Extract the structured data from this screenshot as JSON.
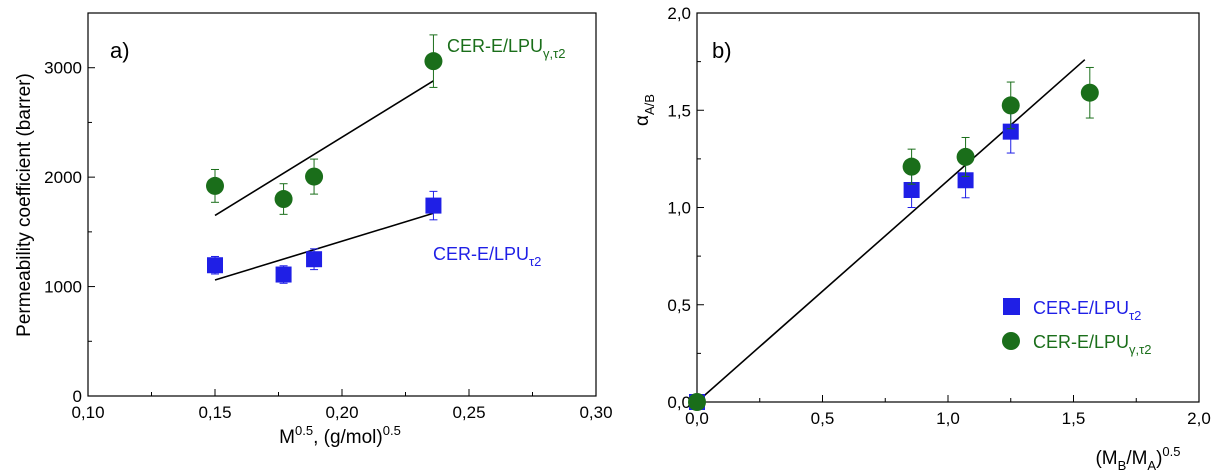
{
  "colors": {
    "blue_series": "#1f1fe6",
    "green_series": "#1a6e1a",
    "fit_line": "#000000"
  },
  "chart_data": [
    {
      "type": "scatter",
      "panel_label": "a)",
      "xlabel": {
        "base": "M",
        "sup": "0.5",
        "mid": ", (g/mol)",
        "sup2": "0.5"
      },
      "ylabel": "Permeability coefficient (barrer)",
      "xlim": [
        0.1,
        0.3
      ],
      "ylim": [
        0,
        3500
      ],
      "xticks": [
        "0,10",
        "0,15",
        "0,20",
        "0,25",
        "0,30"
      ],
      "yticks": [
        "0",
        "1000",
        "2000",
        "3000"
      ],
      "series": [
        {
          "name": {
            "base": "CER-E/LPU",
            "sub": "γ,τ2"
          },
          "marker": "circle",
          "x": [
            0.15,
            0.177,
            0.189,
            0.236
          ],
          "y": [
            1920,
            1800,
            2005,
            3060
          ],
          "err": [
            150,
            140,
            160,
            240
          ]
        },
        {
          "name": {
            "base": "CER-E/LPU",
            "sub": "τ2"
          },
          "marker": "square",
          "x": [
            0.15,
            0.177,
            0.189,
            0.236
          ],
          "y": [
            1195,
            1110,
            1250,
            1740
          ],
          "err": [
            80,
            80,
            95,
            130
          ]
        }
      ],
      "fits": [
        {
          "x": [
            0.15,
            0.236
          ],
          "y": [
            1650,
            2880
          ]
        },
        {
          "x": [
            0.15,
            0.236
          ],
          "y": [
            1060,
            1670
          ]
        }
      ]
    },
    {
      "type": "scatter",
      "panel_label": "b)",
      "xlabel": {
        "base": "(M",
        "sub1": "B",
        "mid": "/M",
        "sub2": "A",
        "end": ")",
        "sup": "0.5"
      },
      "ylabel": {
        "base": "α",
        "sub": "A/B"
      },
      "xlim": [
        0.0,
        2.0
      ],
      "ylim": [
        0.0,
        2.0
      ],
      "xticks": [
        "0,0",
        "0,5",
        "1,0",
        "1,5",
        "2,0"
      ],
      "yticks": [
        "0,0",
        "0,5",
        "1,0",
        "1,5",
        "2,0"
      ],
      "legend": [
        {
          "base": "CER-E/LPU",
          "sub": "τ2",
          "marker": "square"
        },
        {
          "base": "CER-E/LPU",
          "sub": "γ,τ2",
          "marker": "circle"
        }
      ],
      "series": [
        {
          "name": {
            "base": "CER-E/LPU",
            "sub": "τ2"
          },
          "marker": "square",
          "x": [
            0.0,
            0.855,
            1.07,
            1.25
          ],
          "y": [
            0.0,
            1.09,
            1.14,
            1.39
          ],
          "err": [
            0.0,
            0.09,
            0.09,
            0.11
          ]
        },
        {
          "name": {
            "base": "CER-E/LPU",
            "sub": "γ,τ2"
          },
          "marker": "circle",
          "x": [
            0.0,
            0.855,
            1.07,
            1.25,
            1.565
          ],
          "y": [
            0.0,
            1.21,
            1.26,
            1.525,
            1.59
          ],
          "err": [
            0.0,
            0.09,
            0.1,
            0.12,
            0.13
          ]
        }
      ],
      "fits": [
        {
          "x": [
            0.0,
            1.545
          ],
          "y": [
            0.0,
            1.76
          ]
        }
      ]
    }
  ]
}
